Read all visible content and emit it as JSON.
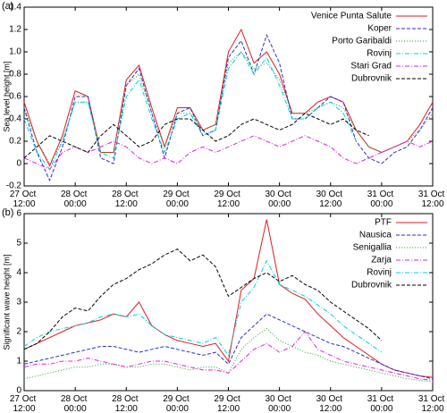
{
  "chart_data": [
    {
      "type": "line",
      "annotation": "(a)",
      "ylabel": "Sea level height [m]",
      "x": [
        "27 Oct 12:00",
        "27 Oct 15:00",
        "27 Oct 18:00",
        "27 Oct 21:00",
        "28 Oct 00:00",
        "28 Oct 03:00",
        "28 Oct 06:00",
        "28 Oct 09:00",
        "28 Oct 12:00",
        "28 Oct 15:00",
        "28 Oct 18:00",
        "28 Oct 21:00",
        "29 Oct 00:00",
        "29 Oct 03:00",
        "29 Oct 06:00",
        "29 Oct 09:00",
        "29 Oct 12:00",
        "29 Oct 15:00",
        "29 Oct 18:00",
        "29 Oct 21:00",
        "30 Oct 00:00",
        "30 Oct 03:00",
        "30 Oct 06:00",
        "30 Oct 09:00",
        "30 Oct 12:00",
        "30 Oct 15:00",
        "30 Oct 18:00",
        "30 Oct 21:00",
        "31 Oct 00:00",
        "31 Oct 03:00",
        "31 Oct 06:00",
        "31 Oct 09:00",
        "31 Oct 12:00"
      ],
      "xlim": [
        "27 Oct 12:00",
        "31 Oct 12:00"
      ],
      "xticks": [
        "27 Oct 12:00",
        "28 Oct 00:00",
        "28 Oct 12:00",
        "29 Oct 00:00",
        "29 Oct 12:00",
        "30 Oct 00:00",
        "30 Oct 12:00",
        "31 Oct 00:00",
        "31 Oct 12:00"
      ],
      "ylim": [
        -0.2,
        1.4
      ],
      "yticks": [
        -0.2,
        0,
        0.2,
        0.4,
        0.6,
        0.8,
        {
          "value": 1,
          "label": "1.0"
        },
        1.2,
        1.4
      ],
      "legend": "upper right",
      "series": [
        {
          "name": "Venice Punta Salute",
          "color": "#e41a1c",
          "dash": "solid",
          "values": [
            0.55,
            0.2,
            -0.02,
            0.25,
            0.65,
            0.6,
            0.1,
            0.1,
            0.75,
            0.88,
            0.5,
            0.15,
            0.5,
            0.5,
            0.3,
            0.35,
            1.0,
            1.2,
            0.9,
            1.0,
            0.8,
            0.45,
            0.45,
            0.55,
            0.6,
            0.55,
            0.3,
            0.15,
            0.1,
            0.15,
            0.2,
            0.35,
            0.55
          ]
        },
        {
          "name": "Koper",
          "color": "#2b2bd6",
          "dash": "dashed",
          "values": [
            0.5,
            0.1,
            -0.15,
            0.15,
            0.6,
            0.6,
            0.05,
            0.0,
            0.7,
            0.85,
            0.45,
            0.05,
            0.45,
            0.5,
            0.25,
            0.3,
            0.95,
            1.1,
            0.8,
            1.15,
            0.9,
            0.4,
            0.4,
            0.5,
            0.6,
            0.55,
            0.2,
            0.05,
            0.0,
            0.1,
            0.15,
            0.3,
            0.5
          ]
        },
        {
          "name": "Porto Garibaldi",
          "color": "#2ca02c",
          "dash": "dotted",
          "values": [
            0.5,
            0.2,
            0.0,
            0.2,
            0.55,
            0.55,
            0.1,
            0.1,
            0.7,
            0.8,
            0.45,
            0.15,
            0.45,
            0.45,
            0.3,
            0.35,
            0.9,
            1.0,
            0.85,
            0.9,
            0.75,
            0.45,
            0.45,
            0.5,
            0.55,
            0.5,
            0.3,
            0.15,
            0.1,
            0.15,
            0.2,
            0.3,
            0.45
          ]
        },
        {
          "name": "Rovinj",
          "color": "#00d0d8",
          "dash": "dashdot",
          "values": [
            0.4,
            0.1,
            -0.05,
            0.2,
            0.55,
            0.55,
            0.1,
            0.05,
            0.6,
            0.75,
            0.4,
            0.1,
            0.4,
            0.45,
            0.25,
            0.3,
            0.85,
            1.0,
            0.8,
            0.95,
            0.7,
            0.4,
            0.4,
            0.5,
            0.55,
            0.45,
            0.2,
            null,
            null,
            null,
            null,
            null,
            null
          ]
        },
        {
          "name": "Stari Grad",
          "color": "#e020e0",
          "dash": "dashdot",
          "values": [
            0.05,
            0.0,
            -0.05,
            0.1,
            0.15,
            0.1,
            0.15,
            0.2,
            0.15,
            0.05,
            0.0,
            0.05,
            0.0,
            0.1,
            0.15,
            0.1,
            0.15,
            0.2,
            0.25,
            0.2,
            0.15,
            0.2,
            0.25,
            0.2,
            0.15,
            0.05,
            0.0,
            0.05,
            0.1,
            0.15,
            0.2,
            0.15,
            0.2
          ]
        },
        {
          "name": "Dubrovnik",
          "color": "#000000",
          "dash": "dashed",
          "values": [
            0.05,
            0.15,
            0.25,
            0.2,
            0.15,
            0.1,
            0.25,
            0.35,
            0.25,
            0.15,
            0.2,
            0.35,
            0.4,
            0.4,
            0.3,
            0.2,
            0.25,
            0.35,
            0.4,
            0.35,
            0.3,
            0.35,
            0.45,
            0.4,
            0.35,
            0.4,
            0.3,
            0.25,
            null,
            null,
            null,
            null,
            null
          ]
        }
      ]
    },
    {
      "type": "line",
      "annotation": "(b)",
      "ylabel": "Significant wave height [m]",
      "x": [
        "27 Oct 12:00",
        "27 Oct 15:00",
        "27 Oct 18:00",
        "27 Oct 21:00",
        "28 Oct 00:00",
        "28 Oct 03:00",
        "28 Oct 06:00",
        "28 Oct 09:00",
        "28 Oct 12:00",
        "28 Oct 15:00",
        "28 Oct 18:00",
        "28 Oct 21:00",
        "29 Oct 00:00",
        "29 Oct 03:00",
        "29 Oct 06:00",
        "29 Oct 09:00",
        "29 Oct 12:00",
        "29 Oct 15:00",
        "29 Oct 18:00",
        "29 Oct 21:00",
        "30 Oct 00:00",
        "30 Oct 03:00",
        "30 Oct 06:00",
        "30 Oct 09:00",
        "30 Oct 12:00",
        "30 Oct 15:00",
        "30 Oct 18:00",
        "30 Oct 21:00",
        "31 Oct 00:00",
        "31 Oct 03:00",
        "31 Oct 06:00",
        "31 Oct 09:00",
        "31 Oct 12:00"
      ],
      "xlim": [
        "27 Oct 12:00",
        "31 Oct 12:00"
      ],
      "xticks": [
        "27 Oct 12:00",
        "28 Oct 00:00",
        "28 Oct 12:00",
        "29 Oct 00:00",
        "29 Oct 12:00",
        "30 Oct 00:00",
        "30 Oct 12:00",
        "31 Oct 00:00",
        "31 Oct 12:00"
      ],
      "ylim": [
        0,
        6
      ],
      "yticks": [
        0,
        1,
        2,
        3,
        4,
        5,
        6
      ],
      "legend": "upper right",
      "series": [
        {
          "name": "PTF",
          "color": "#e41a1c",
          "dash": "solid",
          "values": [
            1.4,
            1.6,
            1.8,
            2.0,
            2.2,
            2.3,
            2.4,
            2.6,
            2.5,
            3.0,
            2.2,
            1.9,
            1.7,
            1.6,
            1.5,
            1.6,
            1.0,
            3.4,
            3.8,
            5.8,
            3.6,
            3.3,
            3.1,
            2.6,
            2.2,
            1.8,
            1.5,
            1.2,
            0.9,
            0.7,
            0.6,
            0.5,
            0.45
          ]
        },
        {
          "name": "Nausica",
          "color": "#2b2bd6",
          "dash": "dashed",
          "values": [
            0.9,
            1.0,
            1.1,
            1.2,
            1.3,
            1.4,
            1.5,
            1.5,
            1.4,
            1.3,
            1.4,
            1.5,
            1.4,
            1.3,
            1.2,
            1.3,
            0.9,
            1.8,
            2.2,
            2.6,
            2.4,
            2.2,
            2.0,
            1.8,
            1.6,
            1.5,
            1.3,
            1.1,
            0.9,
            0.7,
            0.6,
            0.5,
            0.4
          ]
        },
        {
          "name": "Senigallia",
          "color": "#2ca02c",
          "dash": "dotted",
          "values": [
            0.4,
            0.5,
            0.6,
            0.7,
            0.8,
            0.8,
            0.9,
            0.9,
            0.8,
            0.8,
            0.9,
            0.9,
            0.8,
            0.7,
            0.8,
            0.8,
            0.6,
            1.4,
            1.8,
            2.1,
            1.7,
            1.5,
            1.3,
            1.2,
            1.0,
            0.9,
            0.8,
            0.7,
            0.6,
            0.5,
            0.4,
            0.35,
            0.3
          ]
        },
        {
          "name": "Zarja",
          "color": "#e020e0",
          "dash": "dashdot",
          "values": [
            0.8,
            0.9,
            0.9,
            1.0,
            1.0,
            1.1,
            1.0,
            0.9,
            0.8,
            0.9,
            1.0,
            1.0,
            0.9,
            0.8,
            0.7,
            0.7,
            0.6,
            1.0,
            1.4,
            1.6,
            1.3,
            1.5,
            2.0,
            1.4,
            1.2,
            1.0,
            0.9,
            0.8,
            0.7,
            0.6,
            0.5,
            0.4,
            0.35
          ]
        },
        {
          "name": "Rovinj",
          "color": "#00d0d8",
          "dash": "dashdot",
          "values": [
            1.5,
            1.8,
            2.0,
            2.1,
            2.2,
            2.3,
            2.5,
            2.6,
            2.5,
            2.6,
            2.2,
            1.9,
            1.8,
            1.7,
            1.6,
            1.8,
            1.2,
            3.0,
            3.5,
            4.4,
            3.6,
            3.4,
            3.2,
            2.9,
            2.6,
            2.2,
            1.9,
            1.6,
            1.3,
            null,
            null,
            null,
            null
          ]
        },
        {
          "name": "Dubrovnik",
          "color": "#000000",
          "dash": "dashed",
          "values": [
            1.4,
            1.6,
            2.0,
            2.5,
            2.8,
            2.7,
            3.2,
            3.6,
            3.8,
            4.1,
            4.3,
            4.6,
            4.8,
            4.4,
            4.6,
            4.2,
            3.2,
            3.5,
            3.8,
            4.0,
            3.7,
            3.9,
            3.6,
            3.4,
            3.0,
            2.7,
            2.4,
            2.1,
            1.7,
            null,
            null,
            null,
            null
          ]
        }
      ]
    }
  ]
}
